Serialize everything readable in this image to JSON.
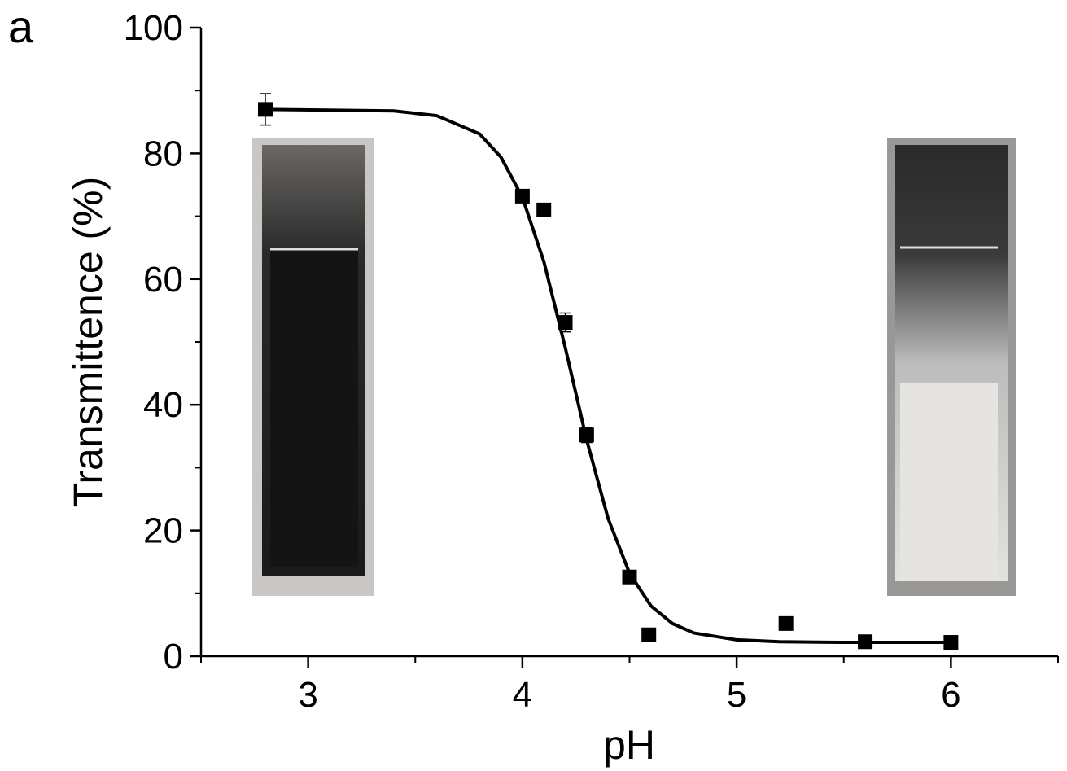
{
  "chart_data": {
    "type": "scatter",
    "panel_label": "a",
    "xlabel": "pH",
    "ylabel": "Transmittence (%)",
    "xlim": [
      2.5,
      6.5
    ],
    "ylim": [
      0,
      100
    ],
    "xticks": [
      3,
      4,
      5,
      6
    ],
    "yticks": [
      0,
      20,
      40,
      60,
      80,
      100
    ],
    "minor_xticks": [
      2.5,
      3.5,
      4.5,
      5.5,
      6.5
    ],
    "minor_yticks": [
      10,
      30,
      50,
      70,
      90
    ],
    "series": [
      {
        "type": "scatter",
        "color": "#000000",
        "x": [
          2.8,
          4.0,
          4.1,
          4.2,
          4.3,
          4.5,
          4.59,
          5.23,
          5.6,
          6.0
        ],
        "values": [
          87.0,
          73.2,
          71.0,
          53.1,
          35.2,
          12.6,
          3.4,
          5.2,
          2.3,
          2.2
        ],
        "errors": [
          2.5,
          1.0,
          0.5,
          1.5,
          1.2,
          1.0,
          0.5,
          0.5,
          0.5,
          0.5
        ]
      },
      {
        "type": "line",
        "color": "#000000",
        "x": [
          2.8,
          3.4,
          3.6,
          3.8,
          3.9,
          4.0,
          4.1,
          4.2,
          4.3,
          4.4,
          4.5,
          4.6,
          4.7,
          4.8,
          5.0,
          5.2,
          5.5,
          6.0
        ],
        "values": [
          87.0,
          86.75,
          86.0,
          83.1,
          79.4,
          73.0,
          62.8,
          49.1,
          34.4,
          21.9,
          13.2,
          8.0,
          5.2,
          3.7,
          2.6,
          2.3,
          2.2,
          2.2
        ]
      }
    ]
  }
}
